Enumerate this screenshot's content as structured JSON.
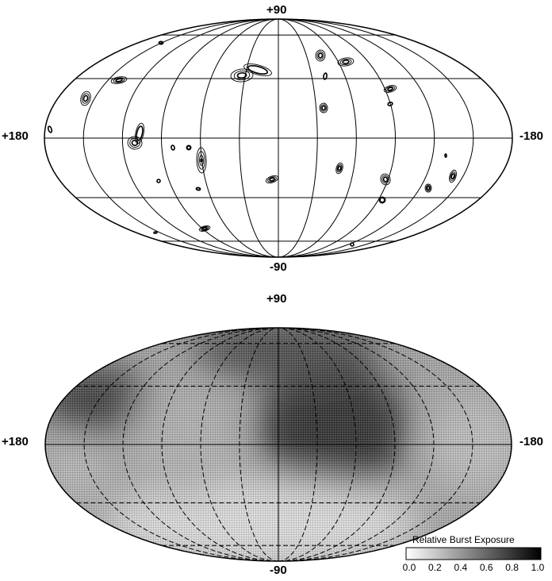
{
  "top_map": {
    "label_north": "+90",
    "label_south": "-90",
    "label_left": "+180",
    "label_right": "-180",
    "lon_meridian_step_deg": 30,
    "lat_parallel_step_deg": 30
  },
  "bottom_map": {
    "label_north": "+90",
    "label_south": "-90",
    "label_left": "+180",
    "label_right": "-180",
    "shading_color": "#1a1a1a"
  },
  "legend": {
    "title": "Relative Burst Exposure",
    "ticks": [
      "0.0",
      "0.2",
      "0.4",
      "0.6",
      "0.8",
      "1.0"
    ],
    "min": 0.0,
    "max": 1.0
  }
}
